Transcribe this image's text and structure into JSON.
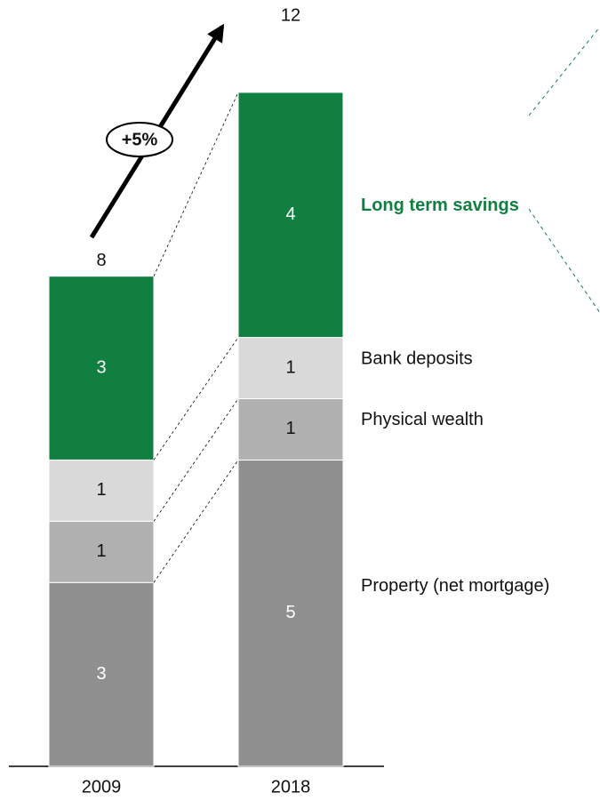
{
  "chart_data": {
    "type": "stacked_bar",
    "categories": [
      "2009",
      "2018"
    ],
    "series": [
      {
        "name": "Property (net mortgage)",
        "color": "#8f8f8f",
        "values": [
          3,
          5
        ]
      },
      {
        "name": "Physical wealth",
        "color": "#b0b0b0",
        "values": [
          1,
          1
        ]
      },
      {
        "name": "Bank deposits",
        "color": "#d9d9d9",
        "values": [
          1,
          1
        ]
      },
      {
        "name": "Long term savings",
        "color": "#117f40",
        "values": [
          3,
          4
        ]
      }
    ],
    "totals": [
      8,
      12
    ],
    "annotation": "+5%"
  }
}
